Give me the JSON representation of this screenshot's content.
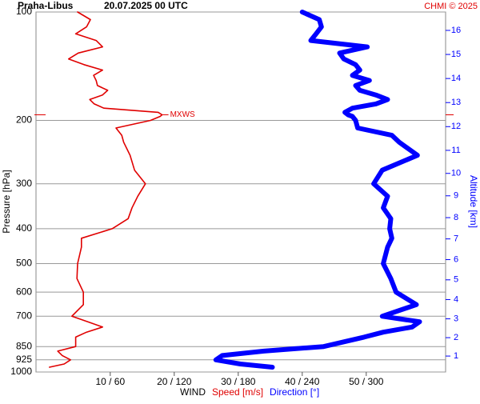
{
  "chart_data": {
    "type": "line",
    "title": "Praha-Libus",
    "subtitle": "20.07.2025 00 UTC",
    "credit": "CHMI © 2025",
    "annotation": "MXWS",
    "ylabel": "Pressure [hPa]",
    "y2label": "Altitude [km]",
    "legend_title": "WIND",
    "ylog": true,
    "grid": true,
    "ylim": [
      1000,
      100
    ],
    "yticks": [
      100,
      200,
      300,
      400,
      500,
      600,
      700,
      850,
      925,
      1000
    ],
    "xlim": [
      -1.6,
      62.4
    ],
    "x2lim": [
      -9.6,
      374.4
    ],
    "xticks": [
      {
        "value": 10,
        "label": "10 / 60"
      },
      {
        "value": 20,
        "label": "20 / 120"
      },
      {
        "value": 30,
        "label": "30 / 180"
      },
      {
        "value": 40,
        "label": "40 / 240"
      },
      {
        "value": 50,
        "label": "50 / 300"
      }
    ],
    "y2ticks": [
      1,
      2,
      3,
      4,
      5,
      6,
      7,
      8,
      9,
      10,
      11,
      12,
      13,
      14,
      15,
      16
    ],
    "y2color": "#0000ff",
    "pressure": [
      100,
      105,
      110,
      115,
      120,
      125,
      130,
      135,
      140,
      145,
      150,
      155,
      160,
      165,
      170,
      175,
      180,
      185,
      190,
      193,
      195,
      200,
      210,
      220,
      230,
      250,
      275,
      300,
      325,
      350,
      375,
      400,
      425,
      450,
      500,
      550,
      600,
      650,
      700,
      725,
      750,
      775,
      800,
      850,
      875,
      900,
      925,
      950,
      970
    ],
    "series": [
      {
        "name": "Speed [m/s]",
        "color": "#e00000",
        "axis": "x",
        "values": [
          4.9,
          6.9,
          6.3,
          4.6,
          7.8,
          8.8,
          5.0,
          3.5,
          5.9,
          8.8,
          7.4,
          7.8,
          8.0,
          9.6,
          8.8,
          6.8,
          7.5,
          9.0,
          17.5,
          18.1,
          17.8,
          16.3,
          10.9,
          11.8,
          12.1,
          13.1,
          13.8,
          15.5,
          14.3,
          13.4,
          12.8,
          10.3,
          5.5,
          5.5,
          4.9,
          4.8,
          5.8,
          5.8,
          4.0,
          6.5,
          8.8,
          6.3,
          4.6,
          4.6,
          1.8,
          2.5,
          3.8,
          2.8,
          0.5
        ]
      },
      {
        "name": "Direction [°]",
        "color": "#0000ff",
        "axis": "x2",
        "values": [
          240,
          256,
          258,
          253,
          248,
          301,
          275,
          279,
          290,
          294,
          287,
          303,
          290,
          294,
          309,
          320,
          309,
          287,
          280,
          283,
          287,
          290,
          292,
          324,
          331,
          348,
          315,
          307,
          320,
          316,
          323,
          322,
          324,
          320,
          316,
          323,
          328,
          347,
          315,
          350,
          343,
          316,
          298,
          260,
          204,
          165,
          159,
          182,
          212
        ]
      }
    ]
  }
}
